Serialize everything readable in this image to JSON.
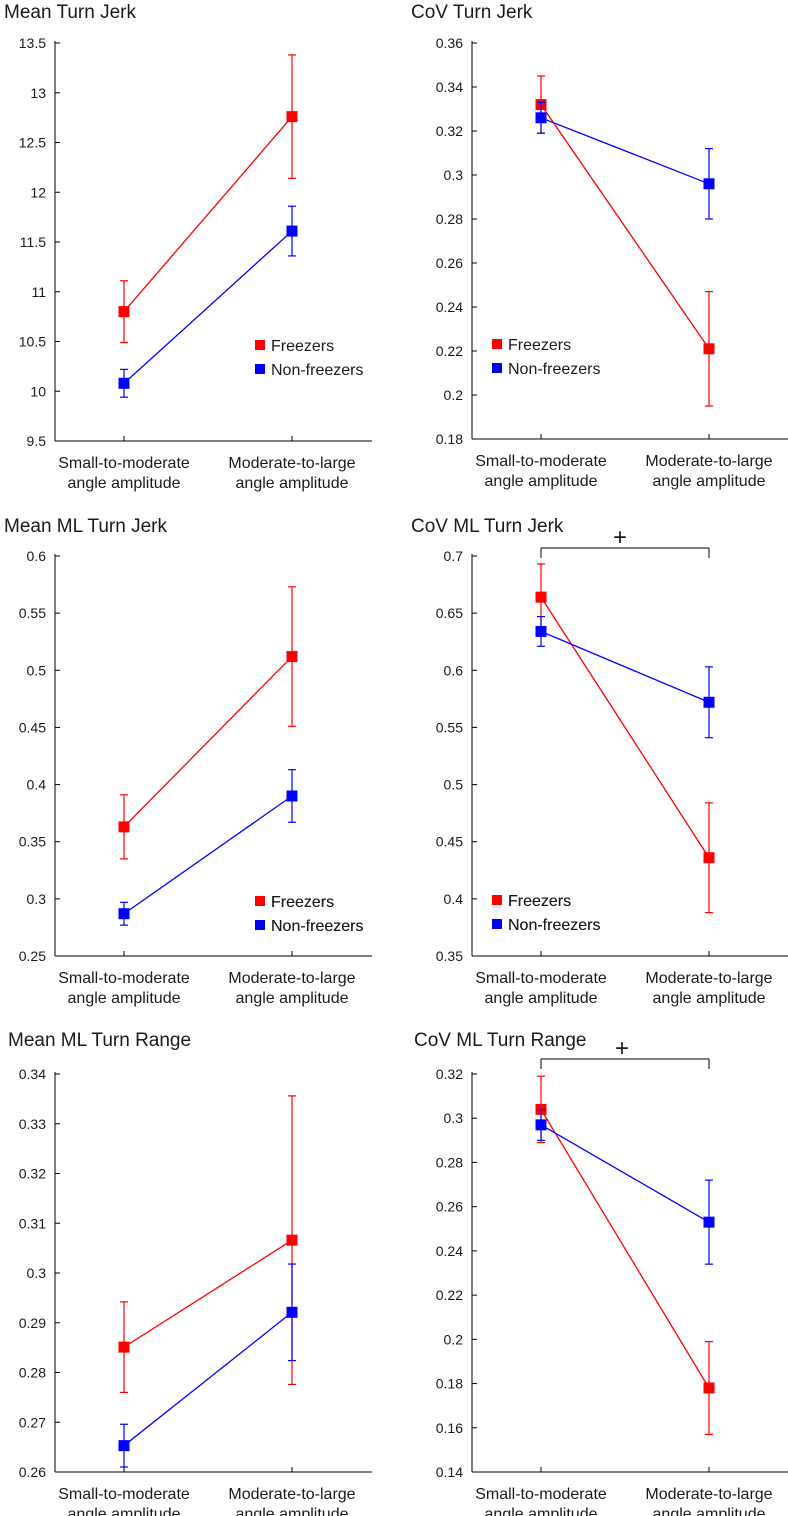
{
  "chart_data": [
    {
      "type": "line",
      "title": "Mean Turn Jerk",
      "categories": [
        "Small-to-moderate\nangle amplitude",
        "Moderate-to-large\nangle amplitude"
      ],
      "ylim": [
        9.5,
        13.5
      ],
      "yticks": [
        "9.5",
        "10",
        "10.5",
        "11",
        "11.5",
        "12",
        "12.5",
        "13",
        "13.5"
      ],
      "series": [
        {
          "name": "Freezers",
          "color": "#ff0000",
          "values": [
            10.8,
            12.76
          ],
          "errors": [
            0.31,
            0.62
          ]
        },
        {
          "name": "Non-freezers",
          "color": "#0000ff",
          "values": [
            10.08,
            11.61
          ],
          "errors": [
            0.14,
            0.25
          ]
        }
      ],
      "legend": "right-middle",
      "significance": null
    },
    {
      "type": "line",
      "title": "CoV Turn Jerk",
      "categories": [
        "Small-to-moderate\nangle amplitude",
        "Moderate-to-large\nangle amplitude"
      ],
      "ylim": [
        0.18,
        0.36
      ],
      "yticks": [
        "0.18",
        "0.2",
        "0.22",
        "0.24",
        "0.26",
        "0.28",
        "0.3",
        "0.32",
        "0.34",
        "0.36"
      ],
      "series": [
        {
          "name": "Freezers",
          "color": "#ff0000",
          "values": [
            0.332,
            0.221
          ],
          "errors": [
            0.013,
            0.026
          ]
        },
        {
          "name": "Non-freezers",
          "color": "#0000ff",
          "values": [
            0.326,
            0.296
          ],
          "errors": [
            0.007,
            0.016
          ]
        }
      ],
      "legend": "left-middle",
      "significance": null
    },
    {
      "type": "line",
      "title": "Mean ML Turn Jerk",
      "categories": [
        "Small-to-moderate\nangle amplitude",
        "Moderate-to-large\nangle amplitude"
      ],
      "ylim": [
        0.25,
        0.6
      ],
      "yticks": [
        "0.25",
        "0.3",
        "0.35",
        "0.4",
        "0.45",
        "0.5",
        "0.55",
        "0.6"
      ],
      "series": [
        {
          "name": "Freezers",
          "color": "#ff0000",
          "values": [
            0.363,
            0.512
          ],
          "errors": [
            0.028,
            0.061
          ]
        },
        {
          "name": "Non-freezers",
          "color": "#0000ff",
          "values": [
            0.287,
            0.39
          ],
          "errors": [
            0.01,
            0.023
          ]
        }
      ],
      "legend": "right-bottom",
      "significance": null
    },
    {
      "type": "line",
      "title": "CoV ML Turn Jerk",
      "categories": [
        "Small-to-moderate\nangle amplitude",
        "Moderate-to-large\nangle amplitude"
      ],
      "ylim": [
        0.35,
        0.7
      ],
      "yticks": [
        "0.35",
        "0.4",
        "0.45",
        "0.5",
        "0.55",
        "0.6",
        "0.65",
        "0.7"
      ],
      "series": [
        {
          "name": "Freezers",
          "color": "#ff0000",
          "values": [
            0.664,
            0.436
          ],
          "errors": [
            0.029,
            0.048
          ]
        },
        {
          "name": "Non-freezers",
          "color": "#0000ff",
          "values": [
            0.634,
            0.572
          ],
          "errors": [
            0.013,
            0.031
          ]
        }
      ],
      "legend": "left-bottom",
      "significance": "+"
    },
    {
      "type": "line",
      "title": "Mean ML Turn Range",
      "categories": [
        "Small-to-moderate\nangle amplitude",
        "Moderate-to-large\nangle amplitude"
      ],
      "ylim": [
        0.26,
        0.34
      ],
      "yticks": [
        "0.26",
        "0.27",
        "0.28",
        "0.29",
        "0.3",
        "0.31",
        "0.32",
        "0.33",
        "0.34"
      ],
      "series": [
        {
          "name": "Freezers",
          "color": "#ff0000",
          "values": [
            0.2851,
            0.3066
          ],
          "errors": [
            0.0091,
            0.029
          ]
        },
        {
          "name": "Non-freezers",
          "color": "#0000ff",
          "values": [
            0.2653,
            0.2921
          ],
          "errors": [
            0.0043,
            0.0097
          ]
        }
      ],
      "legend": "right-bottom",
      "significance": null
    },
    {
      "type": "line",
      "title": "CoV ML Turn Range",
      "categories": [
        "Small-to-moderate\nangle amplitude",
        "Moderate-to-large\nangle amplitude"
      ],
      "ylim": [
        0.14,
        0.32
      ],
      "yticks": [
        "0.14",
        "0.16",
        "0.18",
        "0.2",
        "0.22",
        "0.24",
        "0.26",
        "0.28",
        "0.3",
        "0.32"
      ],
      "series": [
        {
          "name": "Freezers",
          "color": "#ff0000",
          "values": [
            0.304,
            0.178
          ],
          "errors": [
            0.015,
            0.021
          ]
        },
        {
          "name": "Non-freezers",
          "color": "#0000ff",
          "values": [
            0.297,
            0.253
          ],
          "errors": [
            0.007,
            0.019
          ]
        }
      ],
      "legend": "left-bottom",
      "significance": "+"
    }
  ]
}
